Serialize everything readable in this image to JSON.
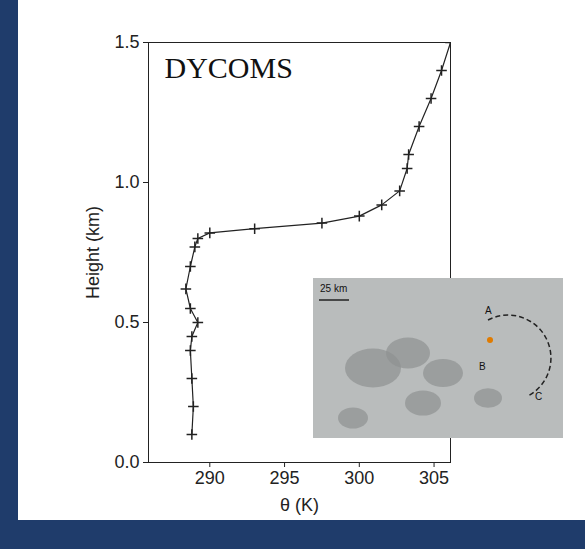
{
  "chart_data": {
    "type": "line",
    "x": [
      288.8,
      288.9,
      288.8,
      288.7,
      288.8,
      289.2,
      288.7,
      288.4,
      288.7,
      289.0,
      289.2,
      290.0,
      293.0,
      297.5,
      300.0,
      301.5,
      302.7,
      303.2,
      303.3,
      304.0,
      304.8,
      305.5,
      306.1
    ],
    "values": [
      0.1,
      0.2,
      0.3,
      0.4,
      0.45,
      0.5,
      0.55,
      0.62,
      0.7,
      0.77,
      0.8,
      0.82,
      0.835,
      0.855,
      0.88,
      0.92,
      0.97,
      1.05,
      1.1,
      1.2,
      1.3,
      1.4,
      1.5
    ],
    "color": "#222222",
    "marker": "plus",
    "xlabel": "θ (K)",
    "ylabel": "Height (km)",
    "xlim": [
      285.9,
      306.1
    ],
    "xticks": [
      290,
      295,
      300,
      305
    ],
    "ylim": [
      0,
      1.5
    ],
    "yticks": [
      0,
      0.5,
      1,
      1.5
    ],
    "annotations": [
      "DYCOMS",
      "25 km",
      "A",
      "B",
      "C"
    ]
  }
}
